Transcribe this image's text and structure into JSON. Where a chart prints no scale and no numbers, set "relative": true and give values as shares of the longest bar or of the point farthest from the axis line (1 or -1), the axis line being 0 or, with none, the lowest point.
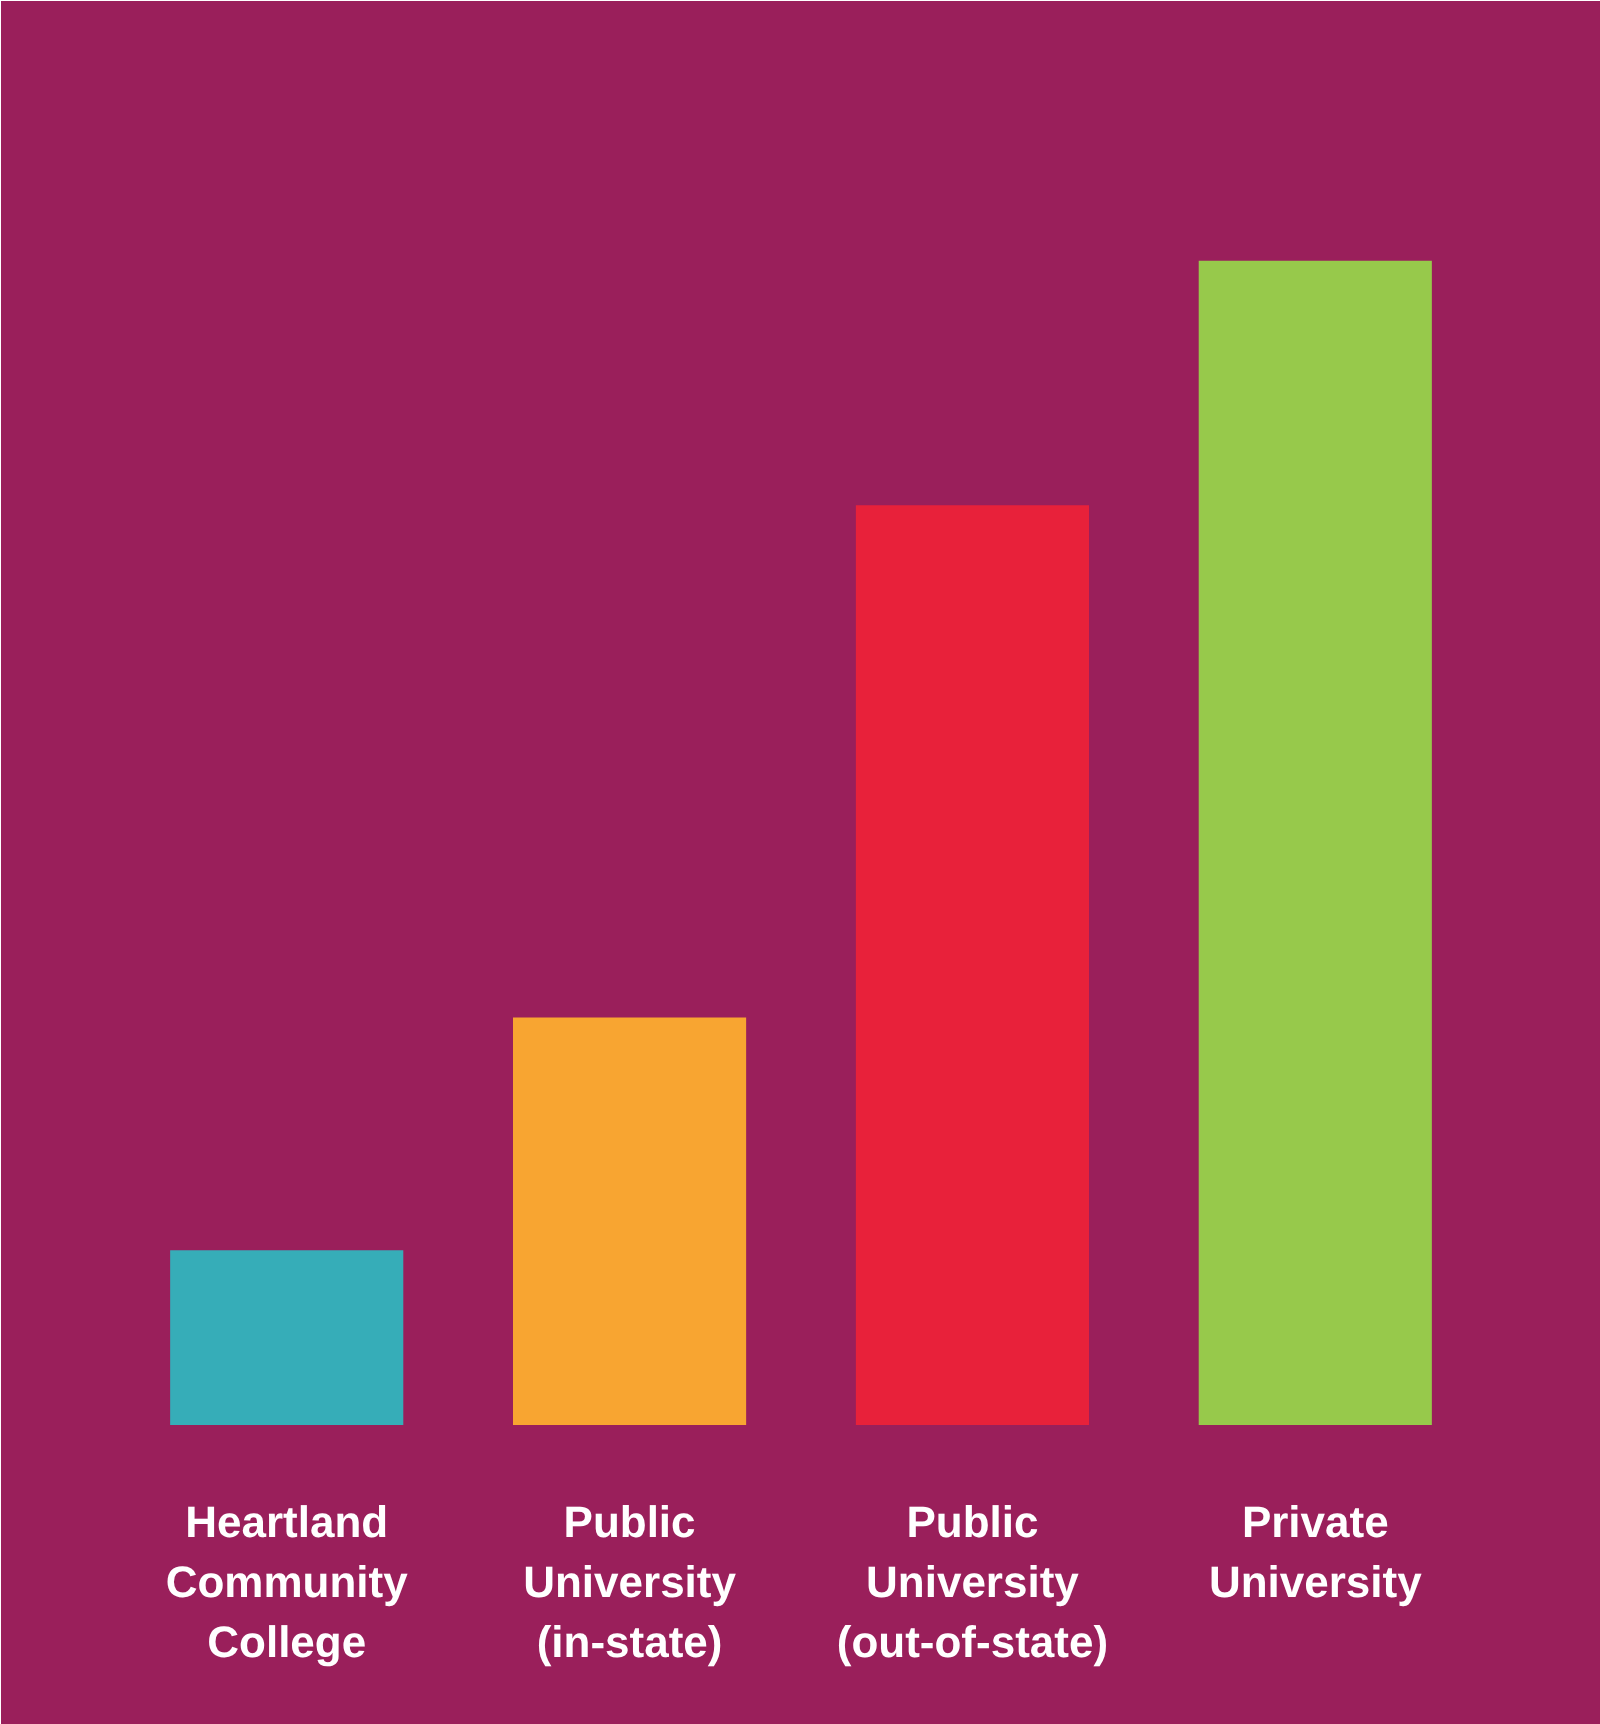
{
  "chart_data": {
    "type": "bar",
    "relative": true,
    "categories": [
      "Heartland\nCommunity\nCollege",
      "Public\nUniversity\n(in-state)",
      "Public\nUniversity\n(out-of-state)",
      "Private\nUniversity"
    ],
    "values": [
      0.15,
      0.35,
      0.79,
      1.0
    ],
    "colors": [
      "#36adb8",
      "#f8a531",
      "#e8213a",
      "#97c94b"
    ],
    "grid": false
  }
}
